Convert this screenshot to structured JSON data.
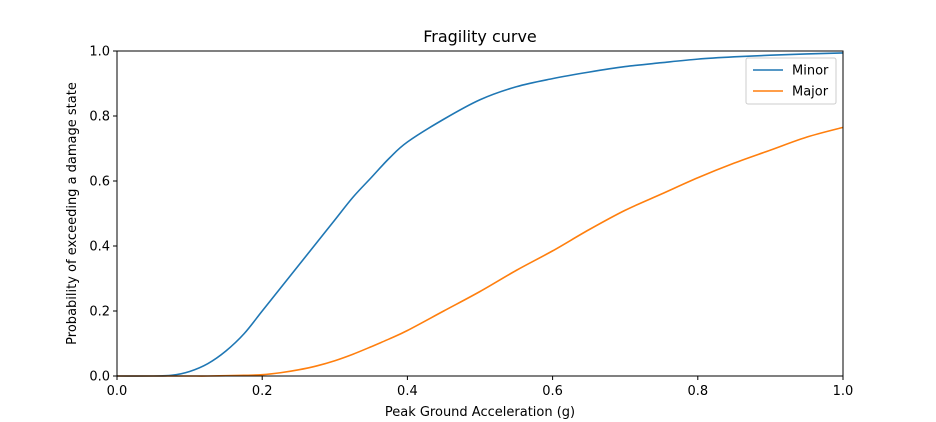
{
  "chart_data": {
    "type": "line",
    "title": "Fragility curve",
    "xlabel": "Peak Ground Acceleration (g)",
    "ylabel": "Probability of exceeding a damage state",
    "xlim": [
      0.0,
      1.0
    ],
    "ylim": [
      0.0,
      1.0
    ],
    "xticks": [
      "0.0",
      "0.2",
      "0.4",
      "0.6",
      "0.8",
      "1.0"
    ],
    "yticks": [
      "0.0",
      "0.2",
      "0.4",
      "0.6",
      "0.8",
      "1.0"
    ],
    "grid": false,
    "legend_position": "top-right",
    "x": [
      0.0,
      0.05,
      0.075,
      0.1,
      0.125,
      0.15,
      0.175,
      0.2,
      0.225,
      0.25,
      0.275,
      0.3,
      0.325,
      0.35,
      0.375,
      0.4,
      0.45,
      0.5,
      0.55,
      0.6,
      0.65,
      0.7,
      0.75,
      0.8,
      0.85,
      0.9,
      0.95,
      1.0
    ],
    "series": [
      {
        "name": "Minor",
        "color": "#1f77b4",
        "values": [
          0.0,
          0.0,
          0.002,
          0.014,
          0.038,
          0.077,
          0.13,
          0.2,
          0.27,
          0.34,
          0.41,
          0.48,
          0.55,
          0.61,
          0.67,
          0.72,
          0.79,
          0.85,
          0.89,
          0.915,
          0.935,
          0.952,
          0.964,
          0.975,
          0.982,
          0.987,
          0.991,
          0.994
        ]
      },
      {
        "name": "Major",
        "color": "#ff7f0e",
        "values": [
          0.0,
          0.0,
          0.0,
          0.0,
          0.0,
          0.001,
          0.002,
          0.004,
          0.01,
          0.019,
          0.031,
          0.047,
          0.067,
          0.09,
          0.114,
          0.14,
          0.2,
          0.26,
          0.325,
          0.385,
          0.45,
          0.51,
          0.56,
          0.61,
          0.655,
          0.695,
          0.735,
          0.765
        ]
      }
    ]
  }
}
